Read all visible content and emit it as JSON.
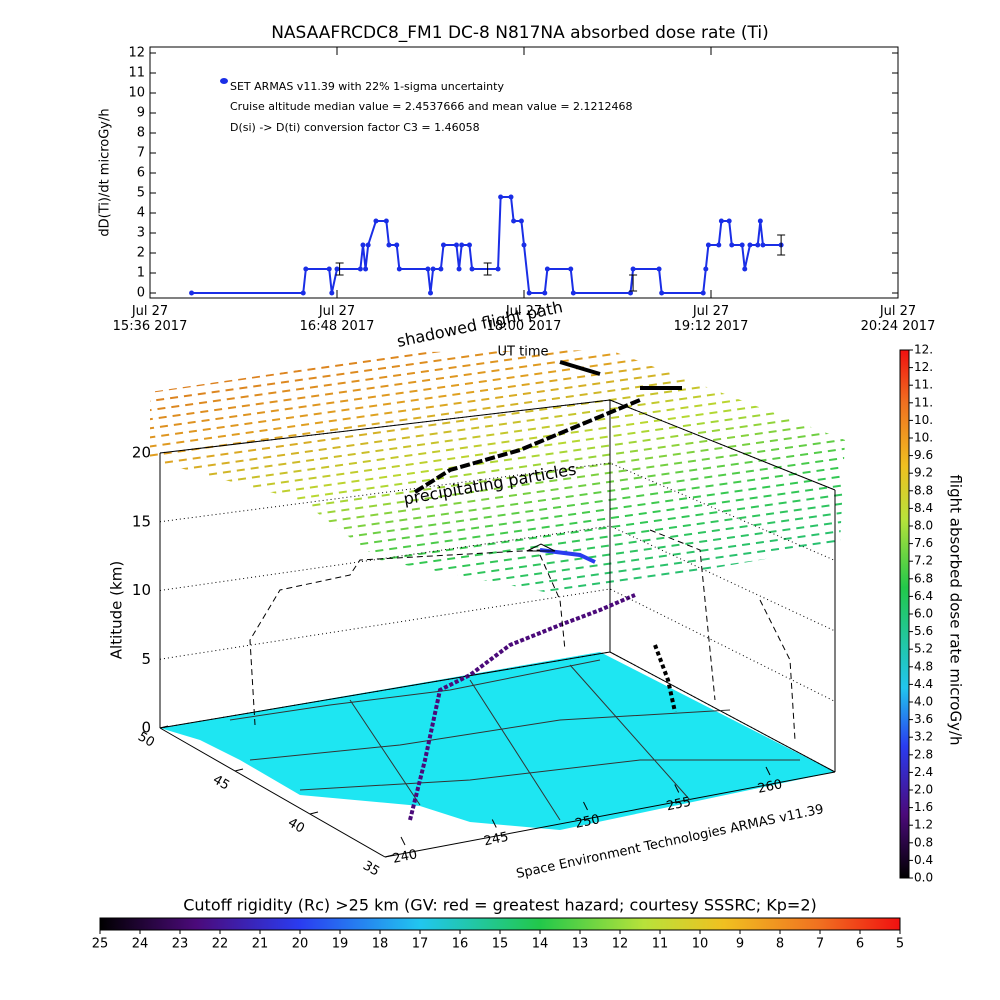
{
  "chart_data": [
    {
      "type": "line",
      "title": "NASAAFRCDC8_FM1 DC-8    N817NA absorbed dose rate (Ti)",
      "ylabel": "dD(Ti)/dt microGy/h",
      "xlim": [
        "2017-07-27 15:36",
        "2017-07-27 20:24"
      ],
      "xticks": [
        {
          "value": "2017-07-27 15:36",
          "label": "Jul 27\n15:36 2017"
        },
        {
          "value": "2017-07-27 16:48",
          "label": "Jul 27\n16:48 2017"
        },
        {
          "value": "2017-07-27 18:00",
          "label": "Jul 27\n18:00 2017"
        },
        {
          "value": "2017-07-27 19:12",
          "label": "Jul 27\n19:12 2017"
        },
        {
          "value": "2017-07-27 20:24",
          "label": "Jul 27\n20:24 2017"
        }
      ],
      "ylim": [
        -0.25,
        12.3
      ],
      "yticks": [
        0,
        1,
        2,
        3,
        4,
        5,
        6,
        7,
        8,
        9,
        10,
        11,
        12
      ],
      "series": [
        {
          "name": "SET ARMAS v11.39 with 22% 1-sigma uncertainty",
          "color": "#1a2ee6",
          "x": [
            "2017-07-27 15:52",
            "2017-07-27 16:35",
            "2017-07-27 16:36",
            "2017-07-27 16:45",
            "2017-07-27 16:46",
            "2017-07-27 16:48",
            "2017-07-27 16:57",
            "2017-07-27 16:58",
            "2017-07-27 16:59",
            "2017-07-27 17:00",
            "2017-07-27 17:03",
            "2017-07-27 17:07",
            "2017-07-27 17:08",
            "2017-07-27 17:11",
            "2017-07-27 17:12",
            "2017-07-27 17:23",
            "2017-07-27 17:24",
            "2017-07-27 17:25",
            "2017-07-27 17:28",
            "2017-07-27 17:29",
            "2017-07-27 17:34",
            "2017-07-27 17:35",
            "2017-07-27 17:36",
            "2017-07-27 17:39",
            "2017-07-27 17:40",
            "2017-07-27 17:50",
            "2017-07-27 17:51",
            "2017-07-27 17:55",
            "2017-07-27 17:56",
            "2017-07-27 17:59",
            "2017-07-27 18:00",
            "2017-07-27 18:02",
            "2017-07-27 18:08",
            "2017-07-27 18:09",
            "2017-07-27 18:18",
            "2017-07-27 18:19",
            "2017-07-27 18:41",
            "2017-07-27 18:42",
            "2017-07-27 18:52",
            "2017-07-27 18:53",
            "2017-07-27 19:09",
            "2017-07-27 19:10",
            "2017-07-27 19:11",
            "2017-07-27 19:15",
            "2017-07-27 19:16",
            "2017-07-27 19:19",
            "2017-07-27 19:20",
            "2017-07-27 19:24",
            "2017-07-27 19:25",
            "2017-07-27 19:27",
            "2017-07-27 19:30",
            "2017-07-27 19:31",
            "2017-07-27 19:32",
            "2017-07-27 19:39"
          ],
          "values": [
            0,
            0,
            1.2,
            1.2,
            0,
            1.2,
            1.2,
            2.4,
            1.2,
            2.4,
            3.6,
            3.6,
            2.4,
            2.4,
            1.2,
            1.2,
            0,
            1.2,
            1.2,
            2.4,
            2.4,
            1.2,
            2.4,
            2.4,
            1.2,
            1.2,
            4.8,
            4.8,
            3.6,
            3.6,
            2.4,
            0,
            0,
            1.2,
            1.2,
            0,
            0,
            1.2,
            1.2,
            0,
            0,
            1.2,
            2.4,
            2.4,
            3.6,
            3.6,
            2.4,
            2.4,
            1.2,
            2.4,
            2.4,
            3.6,
            2.4,
            2.4
          ]
        }
      ],
      "error_bars": {
        "x": [
          "2017-07-27 16:49",
          "2017-07-27 17:46",
          "2017-07-27 18:42",
          "2017-07-27 19:39"
        ],
        "values": [
          1.2,
          1.2,
          0.5,
          2.4
        ],
        "errors": [
          0.3,
          0.3,
          0.4,
          0.5
        ]
      },
      "annotations": [
        "Cruise altitude median value = 2.4537666 and mean value = 2.1212468",
        "D(si) -> D(ti) conversion factor C3 = 1.46058"
      ]
    },
    {
      "type": "surface3d",
      "zlabel": "Altitude (km)",
      "zlim": [
        0,
        20
      ],
      "zticks": [
        0,
        5,
        10,
        15,
        20
      ],
      "latlim": [
        50,
        35
      ],
      "latticks": [
        50,
        45,
        40,
        35
      ],
      "lonlim": [
        240,
        260
      ],
      "lonticks": [
        240,
        245,
        250,
        255,
        260
      ],
      "annotations": [
        "shadowed flight path",
        "UT time",
        "precipitating particles"
      ],
      "credit": "Space Environment Technologies ARMAS v11.39",
      "colorbar": {
        "label": "flight absorbed dose rate microGy/h",
        "lim": [
          0,
          12
        ],
        "ticks": [
          {
            "value": 0,
            "label": "0.0"
          },
          0.4,
          0.8,
          1.2,
          1.6,
          {
            "value": 2,
            "label": "2.0"
          },
          2.4,
          2.8,
          3.2,
          3.6,
          {
            "value": 4,
            "label": "4.0"
          },
          4.4,
          4.8,
          5.2,
          5.6,
          {
            "value": 6,
            "label": "6.0"
          },
          6.4,
          6.8,
          7.2,
          7.6,
          {
            "value": 8,
            "label": "8.0"
          },
          8.4,
          8.8,
          9.2,
          9.6,
          {
            "value": 10,
            "label": "10."
          },
          {
            "value": 10.4,
            "label": "10."
          },
          {
            "value": 10.8,
            "label": "11."
          },
          {
            "value": 11.2,
            "label": "11."
          },
          {
            "value": 11.6,
            "label": "12."
          },
          {
            "value": 12,
            "label": "12."
          }
        ]
      }
    },
    {
      "type": "colorbar",
      "title": "Cutoff rigidity (Rc) >25 km (GV: red = greatest hazard; courtesy SSSRC; Kp=2)",
      "lim": [
        25,
        5
      ],
      "ticks": [
        25,
        24,
        23,
        22,
        21,
        20,
        19,
        18,
        17,
        16,
        15,
        14,
        13,
        12,
        11,
        10,
        9,
        8,
        7,
        6,
        5
      ]
    }
  ]
}
